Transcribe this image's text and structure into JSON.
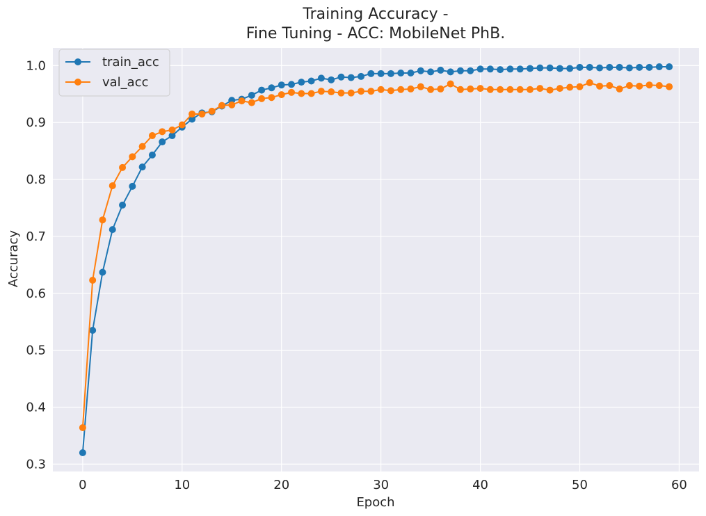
{
  "chart_data": {
    "type": "line",
    "title_line1": "Training Accuracy -",
    "title_line2": "Fine Tuning - ACC: MobileNet PhB.",
    "xlabel": "Epoch",
    "ylabel": "Accuracy",
    "xlim": [
      -3,
      62
    ],
    "ylim": [
      0.287,
      1.031
    ],
    "x_ticks": [
      0,
      10,
      20,
      30,
      40,
      50,
      60
    ],
    "y_ticks": [
      0.3,
      0.4,
      0.5,
      0.6,
      0.7,
      0.8,
      0.9,
      1.0
    ],
    "x_tick_labels": [
      "0",
      "10",
      "20",
      "30",
      "40",
      "50",
      "60"
    ],
    "y_tick_labels": [
      "0.3",
      "0.4",
      "0.5",
      "0.6",
      "0.7",
      "0.8",
      "0.9",
      "1.0"
    ],
    "grid": true,
    "legend_position": "top-left",
    "background_color": "#eaeaf2",
    "x": [
      0,
      1,
      2,
      3,
      4,
      5,
      6,
      7,
      8,
      9,
      10,
      11,
      12,
      13,
      14,
      15,
      16,
      17,
      18,
      19,
      20,
      21,
      22,
      23,
      24,
      25,
      26,
      27,
      28,
      29,
      30,
      31,
      32,
      33,
      34,
      35,
      36,
      37,
      38,
      39,
      40,
      41,
      42,
      43,
      44,
      45,
      46,
      47,
      48,
      49,
      50,
      51,
      52,
      53,
      54,
      55,
      56,
      57,
      58,
      59
    ],
    "series": [
      {
        "name": "train_acc",
        "color": "#1f77b4",
        "values": [
          0.32,
          0.535,
          0.637,
          0.712,
          0.755,
          0.788,
          0.822,
          0.843,
          0.866,
          0.877,
          0.892,
          0.906,
          0.917,
          0.919,
          0.929,
          0.939,
          0.941,
          0.948,
          0.957,
          0.961,
          0.966,
          0.967,
          0.971,
          0.973,
          0.978,
          0.975,
          0.98,
          0.979,
          0.981,
          0.986,
          0.986,
          0.986,
          0.987,
          0.987,
          0.991,
          0.989,
          0.992,
          0.989,
          0.991,
          0.991,
          0.994,
          0.994,
          0.993,
          0.994,
          0.994,
          0.995,
          0.996,
          0.996,
          0.995,
          0.995,
          0.997,
          0.997,
          0.996,
          0.997,
          0.997,
          0.996,
          0.997,
          0.997,
          0.998,
          0.998
        ]
      },
      {
        "name": "val_acc",
        "color": "#ff7f0e",
        "values": [
          0.364,
          0.623,
          0.729,
          0.789,
          0.821,
          0.84,
          0.858,
          0.877,
          0.884,
          0.887,
          0.896,
          0.915,
          0.915,
          0.92,
          0.93,
          0.931,
          0.938,
          0.935,
          0.942,
          0.944,
          0.949,
          0.953,
          0.951,
          0.951,
          0.955,
          0.954,
          0.952,
          0.952,
          0.955,
          0.955,
          0.958,
          0.956,
          0.958,
          0.959,
          0.963,
          0.958,
          0.959,
          0.968,
          0.958,
          0.959,
          0.96,
          0.958,
          0.958,
          0.958,
          0.958,
          0.958,
          0.96,
          0.957,
          0.96,
          0.962,
          0.963,
          0.97,
          0.964,
          0.965,
          0.959,
          0.965,
          0.964,
          0.966,
          0.965,
          0.963
        ]
      }
    ]
  }
}
